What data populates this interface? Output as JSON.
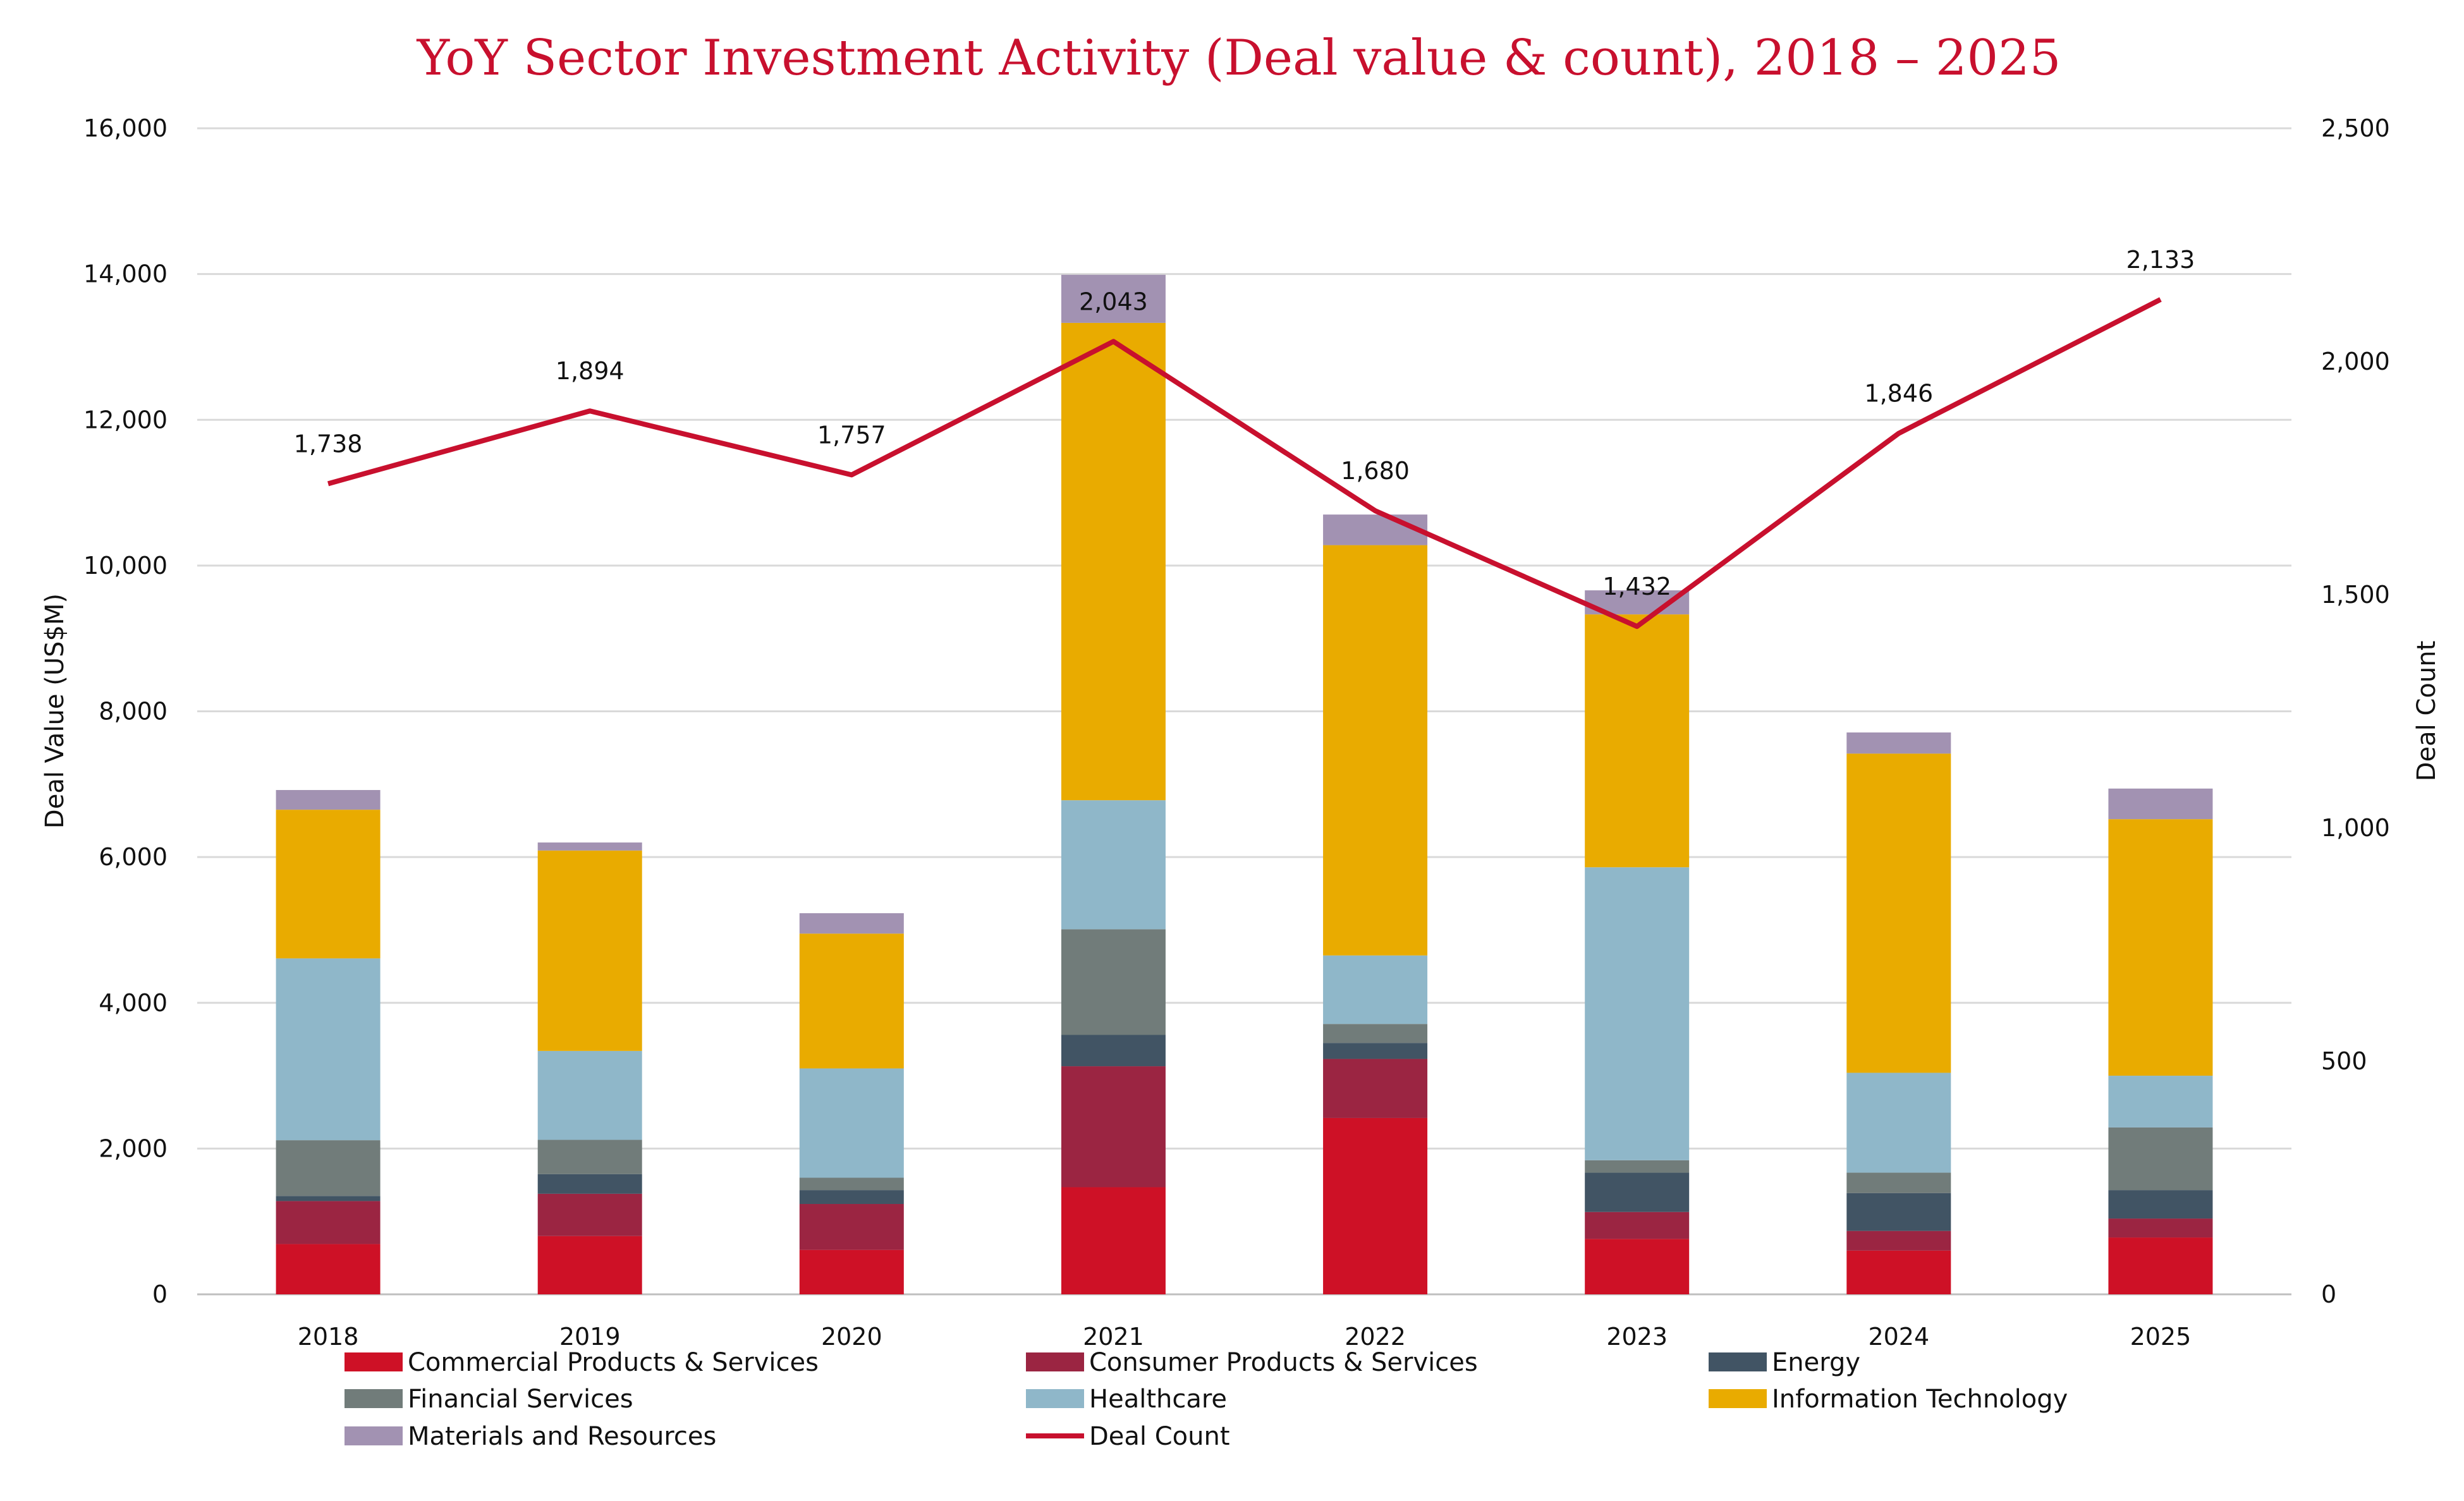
{
  "chart_data": {
    "type": "bar",
    "stacked": true,
    "title": "YoY Sector Investment Activity (Deal value & count), 2018 – 2025",
    "xlabel": "",
    "ylabel": "Deal Value (US$M)",
    "y2label": "Deal Count",
    "ylim": [
      0,
      16000
    ],
    "y2lim": [
      0,
      2500
    ],
    "yticks": [
      "0",
      "2,000",
      "4,000",
      "6,000",
      "8,000",
      "10,000",
      "12,000",
      "14,000",
      "16,000"
    ],
    "y2ticks": [
      "0",
      "500",
      "1,000",
      "1,500",
      "2,000",
      "2,500"
    ],
    "grid": true,
    "legend_position": "bottom",
    "categories": [
      "2018",
      "2019",
      "2020",
      "2021",
      "2022",
      "2023",
      "2024",
      "2025"
    ],
    "series": [
      {
        "name": "Commercial Products & Services",
        "color": "#ce1126",
        "values": [
          690,
          800,
          610,
          1470,
          2420,
          760,
          600,
          780
        ]
      },
      {
        "name": "Consumer Products & Services",
        "color": "#9b2542",
        "values": [
          590,
          580,
          630,
          1660,
          810,
          370,
          270,
          260
        ]
      },
      {
        "name": "Energy",
        "color": "#415464",
        "values": [
          70,
          270,
          190,
          430,
          220,
          540,
          520,
          390
        ]
      },
      {
        "name": "Financial Services",
        "color": "#717c7a",
        "values": [
          765,
          470,
          170,
          1450,
          260,
          170,
          280,
          860
        ]
      },
      {
        "name": "Healthcare",
        "color": "#8fb7c9",
        "values": [
          2495,
          1220,
          1500,
          1770,
          940,
          4020,
          1370,
          710
        ]
      },
      {
        "name": "Information Technology",
        "color": "#e9ab00",
        "values": [
          2040,
          2750,
          1850,
          6550,
          5630,
          3470,
          4380,
          3520
        ]
      },
      {
        "name": "Materials and Resources",
        "color": "#a292b2",
        "values": [
          270,
          110,
          280,
          660,
          420,
          330,
          290,
          420
        ]
      }
    ],
    "line_series": {
      "name": "Deal Count",
      "color": "#c8102e",
      "axis": "right",
      "values": [
        1738,
        1894,
        1757,
        2043,
        1680,
        1432,
        1846,
        2133
      ],
      "labels": [
        "1,738",
        "1,894",
        "1,757",
        "2,043",
        "1,680",
        "1,432",
        "1,846",
        "2,133"
      ]
    }
  }
}
